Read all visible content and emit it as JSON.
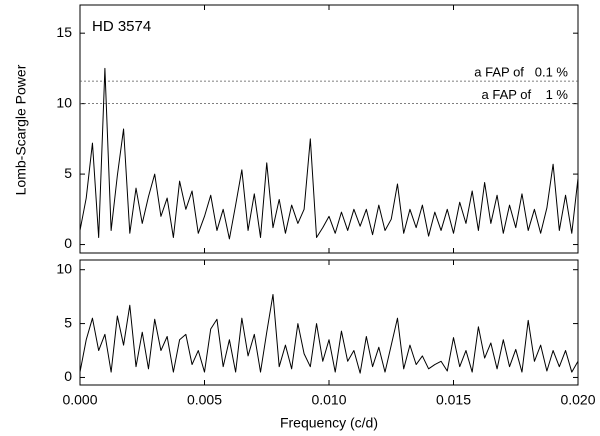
{
  "chart_data": [
    {
      "type": "line",
      "annotation": "HD 3574",
      "ylabel": "Lomb-Scargle Power",
      "x": [
        0,
        0.00025,
        0.0005,
        0.00075,
        0.001,
        0.00125,
        0.0015,
        0.00175,
        0.002,
        0.00225,
        0.0025,
        0.00275,
        0.003,
        0.00325,
        0.0035,
        0.00375,
        0.004,
        0.00425,
        0.0045,
        0.00475,
        0.005,
        0.00525,
        0.0055,
        0.00575,
        0.006,
        0.00625,
        0.0065,
        0.00675,
        0.007,
        0.00725,
        0.0075,
        0.00775,
        0.008,
        0.00825,
        0.0085,
        0.00875,
        0.009,
        0.00925,
        0.0095,
        0.00975,
        0.01,
        0.01025,
        0.0105,
        0.01075,
        0.011,
        0.01125,
        0.0115,
        0.01175,
        0.012,
        0.01225,
        0.0125,
        0.01275,
        0.013,
        0.01325,
        0.0135,
        0.01375,
        0.014,
        0.01425,
        0.0145,
        0.01475,
        0.015,
        0.01525,
        0.0155,
        0.01575,
        0.016,
        0.01625,
        0.0165,
        0.01675,
        0.017,
        0.01725,
        0.0175,
        0.01775,
        0.018,
        0.01825,
        0.0185,
        0.01875,
        0.019,
        0.01925,
        0.0195,
        0.01975,
        0.02
      ],
      "series": [
        {
          "color": "#000000",
          "values": [
            1.0,
            3.3,
            7.2,
            0.5,
            12.5,
            1.0,
            4.9,
            8.2,
            0.8,
            4.0,
            1.5,
            3.4,
            5.0,
            2.0,
            3.3,
            0.5,
            4.5,
            2.5,
            3.8,
            0.8,
            2.0,
            3.5,
            1.0,
            2.5,
            0.4,
            2.8,
            5.3,
            1.0,
            3.6,
            0.5,
            5.8,
            1.2,
            3.2,
            0.8,
            2.8,
            1.5,
            2.5,
            7.5,
            0.5,
            1.2,
            2.0,
            0.8,
            2.3,
            1.0,
            2.5,
            1.3,
            2.5,
            0.7,
            2.8,
            1.0,
            1.8,
            4.3,
            0.8,
            2.5,
            1.2,
            2.8,
            0.6,
            2.3,
            1.0,
            2.5,
            0.8,
            3.0,
            1.5,
            3.8,
            1.0,
            4.4,
            1.5,
            3.5,
            0.8,
            2.8,
            1.2,
            3.6,
            1.0,
            2.5,
            0.8,
            2.6,
            5.7,
            1.0,
            3.5,
            0.8,
            4.7
          ]
        }
      ],
      "fap_lines": [
        {
          "value": 11.6,
          "label": "a FAP of   0.1 %"
        },
        {
          "value": 10.0,
          "label": "a FAP of    1 %"
        }
      ],
      "xlim": [
        0,
        0.02
      ],
      "ylim": [
        -0.6,
        17
      ],
      "yticks": [
        0,
        5,
        10,
        15
      ]
    },
    {
      "type": "line",
      "xlabel": "Frequency (c/d)",
      "x": [
        0,
        0.00025,
        0.0005,
        0.00075,
        0.001,
        0.00125,
        0.0015,
        0.00175,
        0.002,
        0.00225,
        0.0025,
        0.00275,
        0.003,
        0.00325,
        0.0035,
        0.00375,
        0.004,
        0.00425,
        0.0045,
        0.00475,
        0.005,
        0.00525,
        0.0055,
        0.00575,
        0.006,
        0.00625,
        0.0065,
        0.00675,
        0.007,
        0.00725,
        0.0075,
        0.00775,
        0.008,
        0.00825,
        0.0085,
        0.00875,
        0.009,
        0.00925,
        0.0095,
        0.00975,
        0.01,
        0.01025,
        0.0105,
        0.01075,
        0.011,
        0.01125,
        0.0115,
        0.01175,
        0.012,
        0.01225,
        0.0125,
        0.01275,
        0.013,
        0.01325,
        0.0135,
        0.01375,
        0.014,
        0.01425,
        0.0145,
        0.01475,
        0.015,
        0.01525,
        0.0155,
        0.01575,
        0.016,
        0.01625,
        0.0165,
        0.01675,
        0.017,
        0.01725,
        0.0175,
        0.01775,
        0.018,
        0.01825,
        0.0185,
        0.01875,
        0.019,
        0.01925,
        0.0195,
        0.01975,
        0.02
      ],
      "series": [
        {
          "color": "#000000",
          "values": [
            0.5,
            3.5,
            5.5,
            2.5,
            4.0,
            0.5,
            5.7,
            3.0,
            6.7,
            1.0,
            4.2,
            0.8,
            5.4,
            2.5,
            3.8,
            0.5,
            3.5,
            4.0,
            1.2,
            2.5,
            0.5,
            4.5,
            5.4,
            1.0,
            3.5,
            0.5,
            5.5,
            2.0,
            4.0,
            0.5,
            4.2,
            7.7,
            1.0,
            3.0,
            0.8,
            5.0,
            2.2,
            1.0,
            5.0,
            1.5,
            3.5,
            0.5,
            4.3,
            1.5,
            2.5,
            0.4,
            3.8,
            1.0,
            2.8,
            0.5,
            3.0,
            5.5,
            0.8,
            3.0,
            1.2,
            2.0,
            0.8,
            1.2,
            1.5,
            0.6,
            3.7,
            1.0,
            2.5,
            0.5,
            4.7,
            1.8,
            3.2,
            0.8,
            3.5,
            1.0,
            2.6,
            0.5,
            5.3,
            1.5,
            3.0,
            0.6,
            2.5,
            1.0,
            2.5,
            0.5,
            1.5
          ]
        }
      ],
      "xlim": [
        0,
        0.02
      ],
      "xticks": [
        {
          "value": 0,
          "label": "0.000"
        },
        0.005,
        {
          "value": 0.01,
          "label": "0.010"
        },
        0.015,
        {
          "value": 0.02,
          "label": "0.020"
        }
      ],
      "ylim": [
        -0.7,
        10.9
      ],
      "yticks": [
        0,
        5,
        10
      ]
    }
  ]
}
